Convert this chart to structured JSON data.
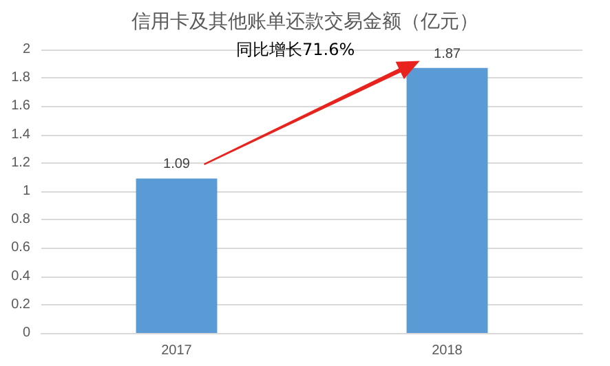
{
  "chart_data": {
    "type": "bar",
    "title": "信用卡及其他账单还款交易金额（亿元）",
    "categories": [
      "2017",
      "2018"
    ],
    "values": [
      1.09,
      1.87
    ],
    "color": "#5b9bd5",
    "ylim": [
      0,
      2
    ],
    "yticks": [
      0,
      0.2,
      0.4,
      0.6,
      0.8,
      1,
      1.2,
      1.4,
      1.6,
      1.8,
      2
    ],
    "grid": "y",
    "data_labels": true,
    "annotations": [
      "同比增长71.6%"
    ]
  }
}
